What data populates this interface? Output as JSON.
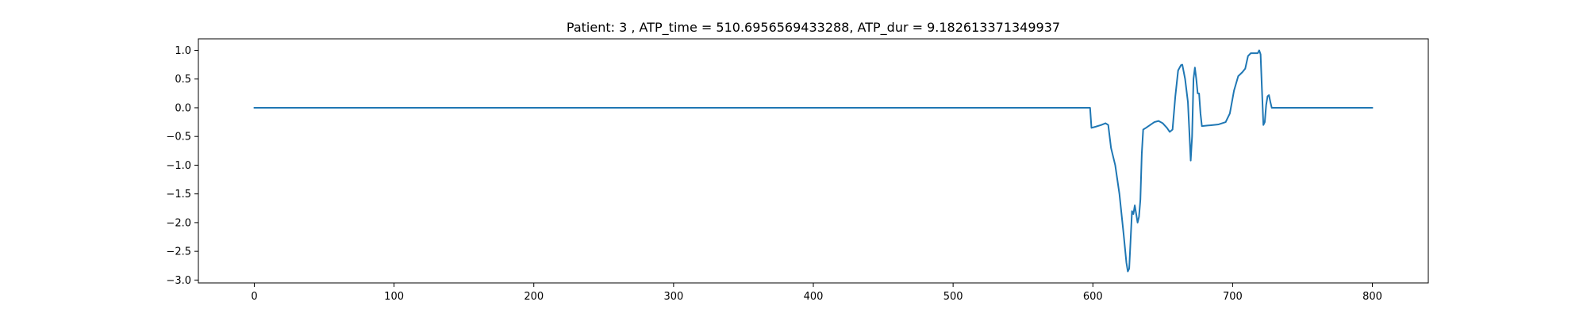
{
  "chart_data": {
    "type": "line",
    "title": "Patient: 3 , ATP_time = 510.6956569433288, ATP_dur = 9.182613371349937",
    "xlabel": "",
    "ylabel": "",
    "xlim": [
      -40,
      840
    ],
    "ylim": [
      -3.05,
      1.2
    ],
    "xticks": [
      0,
      100,
      200,
      300,
      400,
      500,
      600,
      700,
      800
    ],
    "xtick_labels": [
      "0",
      "100",
      "200",
      "300",
      "400",
      "500",
      "600",
      "700",
      "800"
    ],
    "yticks": [
      1.0,
      0.5,
      0.0,
      -0.5,
      -1.0,
      -1.5,
      -2.0,
      -2.5,
      -3.0
    ],
    "ytick_labels": [
      "1.0",
      "0.5",
      "0.0",
      "−0.5",
      "−1.0",
      "−1.5",
      "−2.0",
      "−2.5",
      "−3.0"
    ],
    "grid": false,
    "series": [
      {
        "color": "#1f77b4",
        "points": [
          [
            0,
            0.0
          ],
          [
            598,
            0.0
          ],
          [
            599,
            -0.35
          ],
          [
            602,
            -0.33
          ],
          [
            606,
            -0.3
          ],
          [
            609,
            -0.27
          ],
          [
            611,
            -0.3
          ],
          [
            613,
            -0.7
          ],
          [
            616,
            -1.0
          ],
          [
            619,
            -1.5
          ],
          [
            622,
            -2.2
          ],
          [
            624,
            -2.7
          ],
          [
            625,
            -2.85
          ],
          [
            626,
            -2.8
          ],
          [
            627,
            -2.3
          ],
          [
            628,
            -1.8
          ],
          [
            629,
            -1.85
          ],
          [
            630,
            -1.7
          ],
          [
            631,
            -1.85
          ],
          [
            632,
            -2.0
          ],
          [
            633,
            -1.9
          ],
          [
            634,
            -1.6
          ],
          [
            635,
            -0.8
          ],
          [
            636,
            -0.38
          ],
          [
            638,
            -0.35
          ],
          [
            641,
            -0.3
          ],
          [
            644,
            -0.25
          ],
          [
            647,
            -0.23
          ],
          [
            650,
            -0.27
          ],
          [
            653,
            -0.35
          ],
          [
            655,
            -0.42
          ],
          [
            657,
            -0.38
          ],
          [
            659,
            0.2
          ],
          [
            661,
            0.65
          ],
          [
            663,
            0.74
          ],
          [
            664,
            0.75
          ],
          [
            666,
            0.5
          ],
          [
            668,
            0.1
          ],
          [
            669,
            -0.4
          ],
          [
            670,
            -0.92
          ],
          [
            671,
            -0.5
          ],
          [
            672,
            0.5
          ],
          [
            673,
            0.7
          ],
          [
            674,
            0.5
          ],
          [
            675,
            0.25
          ],
          [
            676,
            0.25
          ],
          [
            677,
            -0.1
          ],
          [
            678,
            -0.32
          ],
          [
            682,
            -0.31
          ],
          [
            690,
            -0.29
          ],
          [
            695,
            -0.25
          ],
          [
            698,
            -0.1
          ],
          [
            701,
            0.3
          ],
          [
            704,
            0.55
          ],
          [
            707,
            0.62
          ],
          [
            709,
            0.68
          ],
          [
            711,
            0.9
          ],
          [
            713,
            0.95
          ],
          [
            716,
            0.95
          ],
          [
            718,
            0.95
          ],
          [
            719,
            1.0
          ],
          [
            720,
            0.93
          ],
          [
            721,
            0.3
          ],
          [
            722,
            -0.3
          ],
          [
            723,
            -0.25
          ],
          [
            724,
            0.05
          ],
          [
            725,
            0.2
          ],
          [
            726,
            0.22
          ],
          [
            727,
            0.1
          ],
          [
            728,
            0.0
          ],
          [
            730,
            0.0
          ],
          [
            800,
            0.0
          ]
        ]
      }
    ]
  }
}
